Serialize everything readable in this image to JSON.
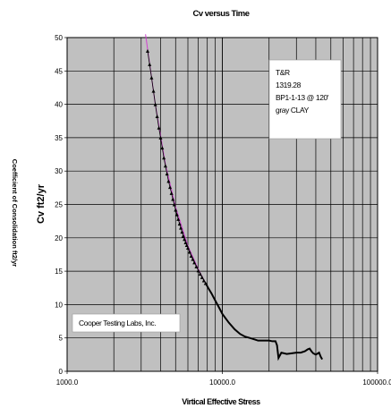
{
  "chart_data": {
    "type": "scatter",
    "title": "Cv versus Time",
    "xlabel": "Virtical Effective Stress",
    "ylabel": "Cv ft2/yr",
    "side_label": "Coefficient of Consolidation ft2/yr",
    "x_scale": "log",
    "xlim": [
      1000,
      100000
    ],
    "ylim": [
      0,
      50
    ],
    "x_tick_labels": [
      "1000.0",
      "10000.0",
      "100000.0"
    ],
    "y_ticks": [
      0,
      5,
      10,
      15,
      20,
      25,
      30,
      35,
      40,
      45,
      50
    ],
    "grid": true,
    "plot_background": "#c0c0c0",
    "annotations": {
      "info_box": [
        "T&R",
        "1319.28",
        "BP1-1-13 @ 120'",
        "gray CLAY"
      ],
      "lab_box": "Cooper Testing Labs, Inc."
    },
    "series": [
      {
        "marker": "triangle",
        "color": "#000000",
        "points": [
          [
            3300,
            48.0
          ],
          [
            3400,
            46.0
          ],
          [
            3500,
            44.0
          ],
          [
            3600,
            42.0
          ],
          [
            3700,
            40.0
          ],
          [
            3800,
            38.2
          ],
          [
            3900,
            36.5
          ],
          [
            4000,
            35.0
          ],
          [
            4100,
            33.5
          ],
          [
            4200,
            32.0
          ],
          [
            4300,
            30.8
          ],
          [
            4400,
            29.6
          ],
          [
            4500,
            28.5
          ],
          [
            4600,
            27.6
          ],
          [
            4700,
            26.7
          ],
          [
            4800,
            25.8
          ],
          [
            4900,
            25.0
          ],
          [
            5000,
            24.2
          ],
          [
            5100,
            23.5
          ],
          [
            5200,
            22.8
          ],
          [
            5300,
            22.1
          ],
          [
            5400,
            21.5
          ],
          [
            5500,
            20.9
          ],
          [
            5600,
            20.3
          ],
          [
            5700,
            19.8
          ],
          [
            5800,
            19.3
          ],
          [
            5900,
            18.9
          ],
          [
            6000,
            18.5
          ],
          [
            6150,
            17.9
          ],
          [
            6300,
            17.3
          ],
          [
            6450,
            16.8
          ],
          [
            6600,
            16.3
          ],
          [
            6800,
            15.7
          ],
          [
            7000,
            15.1
          ],
          [
            7200,
            14.6
          ],
          [
            7400,
            14.1
          ],
          [
            7600,
            13.6
          ],
          [
            7800,
            13.2
          ]
        ]
      },
      {
        "marker": "none",
        "color": "#000000",
        "points": [
          [
            7800,
            13.2
          ],
          [
            8100,
            12.5
          ],
          [
            8500,
            11.7
          ],
          [
            9000,
            10.6
          ],
          [
            9500,
            9.6
          ],
          [
            10000,
            8.6
          ],
          [
            11000,
            7.3
          ],
          [
            12000,
            6.3
          ],
          [
            13000,
            5.6
          ],
          [
            14000,
            5.2
          ],
          [
            15000,
            5.0
          ],
          [
            16000,
            4.8
          ],
          [
            17000,
            4.6
          ],
          [
            18000,
            4.6
          ],
          [
            19000,
            4.6
          ],
          [
            20000,
            4.6
          ],
          [
            21000,
            4.5
          ],
          [
            22000,
            4.5
          ],
          [
            22500,
            3.9
          ],
          [
            23000,
            2.0
          ],
          [
            24000,
            2.8
          ],
          [
            26000,
            2.6
          ],
          [
            28000,
            2.7
          ],
          [
            30000,
            2.8
          ],
          [
            32000,
            2.8
          ],
          [
            34000,
            3.0
          ],
          [
            35500,
            3.3
          ],
          [
            36500,
            3.4
          ],
          [
            37500,
            3.0
          ],
          [
            38500,
            2.7
          ],
          [
            40000,
            2.5
          ],
          [
            42000,
            2.8
          ],
          [
            43000,
            2.2
          ],
          [
            44000,
            1.8
          ]
        ]
      }
    ],
    "trend_line": {
      "color": "#d040d0",
      "points": [
        [
          3200,
          50.5
        ],
        [
          3700,
          40.0
        ],
        [
          4300,
          31.0
        ],
        [
          5000,
          24.6
        ],
        [
          6000,
          18.8
        ],
        [
          7000,
          15.3
        ],
        [
          7800,
          13.2
        ]
      ]
    }
  }
}
